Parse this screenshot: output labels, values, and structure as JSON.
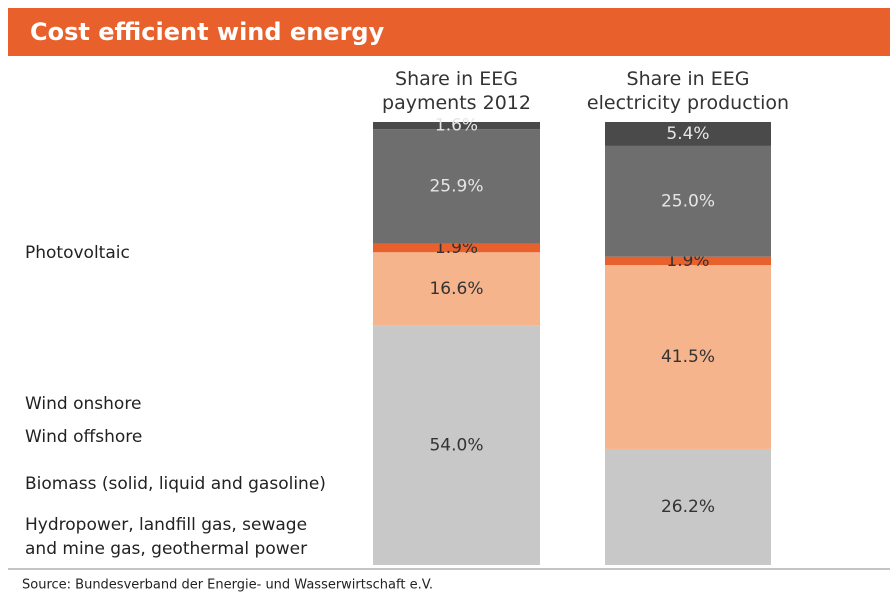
{
  "chart_data": {
    "type": "stacked-bar",
    "title": "Cost efficient wind energy",
    "categories": [
      "Share in EEG\npayments 2012",
      "Share in EEG\nelectricity production"
    ],
    "ylim": [
      0,
      100
    ],
    "series": [
      {
        "name": "Photovoltaic",
        "color": "#c8c8c8",
        "values": [
          54.0,
          26.2
        ],
        "value_labels": [
          "54.0%",
          "26.2%"
        ]
      },
      {
        "name": "Wind onshore",
        "color": "#f5b48c",
        "values": [
          16.6,
          41.5
        ],
        "value_labels": [
          "16.6%",
          "41.5%"
        ]
      },
      {
        "name": "Wind offshore",
        "color": "#e8602c",
        "values": [
          1.9,
          1.9
        ],
        "value_labels": [
          "1.9%",
          "1.9%"
        ]
      },
      {
        "name": "Biomass (solid, liquid and gasoline)",
        "color": "#6e6e6e",
        "values": [
          25.9,
          25.0
        ],
        "value_labels": [
          "25.9%",
          "25.0%"
        ]
      },
      {
        "name": "Hydropower, landfill gas, sewage\nand mine gas, geothermal power",
        "color": "#4a4a4a",
        "values": [
          1.6,
          5.4
        ],
        "value_labels": [
          "1.6%",
          "5.4%"
        ]
      }
    ],
    "source": "Source: Bundesverband der Energie- und Wasserwirtschaft e.V."
  }
}
